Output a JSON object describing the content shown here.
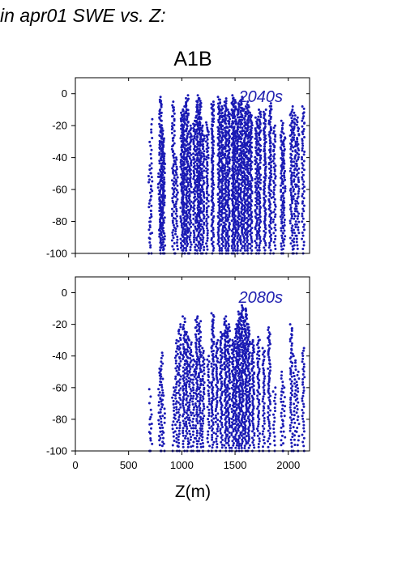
{
  "page": {
    "title": "in apr01 SWE vs. Z:"
  },
  "colors": {
    "points": "#1a1ab4",
    "label": "#2020b0",
    "axis": "#000000"
  },
  "chart_data": [
    {
      "type": "scatter",
      "title": "A1B",
      "annotation": "2040s",
      "xlabel": "",
      "ylabel": "",
      "xlim": [
        0,
        2200
      ],
      "ylim": [
        -100,
        10
      ],
      "x_ticks": [
        0,
        500,
        1000,
        1500,
        2000
      ],
      "y_ticks": [
        0,
        -20,
        -40,
        -60,
        -80,
        -100
      ],
      "x_tick_labels_shown": false,
      "grid": false,
      "elevation_columns": [
        {
          "x": 700,
          "ymax": -45,
          "density": 0.4
        },
        {
          "x": 710,
          "ymax": -16,
          "density": 0.3
        },
        {
          "x": 790,
          "ymax": -50,
          "density": 0.4
        },
        {
          "x": 800,
          "ymax": -2,
          "density": 0.9
        },
        {
          "x": 820,
          "ymax": -20,
          "density": 0.8
        },
        {
          "x": 830,
          "ymax": -28,
          "density": 0.6
        },
        {
          "x": 920,
          "ymax": -5,
          "density": 0.7
        },
        {
          "x": 950,
          "ymax": -40,
          "density": 0.6
        },
        {
          "x": 1000,
          "ymax": -12,
          "density": 0.9
        },
        {
          "x": 1020,
          "ymax": -8,
          "density": 1
        },
        {
          "x": 1050,
          "ymax": -1,
          "density": 1
        },
        {
          "x": 1080,
          "ymax": -20,
          "density": 0.8
        },
        {
          "x": 1120,
          "ymax": -15,
          "density": 0.8
        },
        {
          "x": 1150,
          "ymax": -1,
          "density": 1
        },
        {
          "x": 1170,
          "ymax": -3,
          "density": 1
        },
        {
          "x": 1200,
          "ymax": -20,
          "density": 0.8
        },
        {
          "x": 1240,
          "ymax": -18,
          "density": 0.7
        },
        {
          "x": 1290,
          "ymax": -5,
          "density": 1
        },
        {
          "x": 1350,
          "ymax": -2,
          "density": 1
        },
        {
          "x": 1380,
          "ymax": -8,
          "density": 1
        },
        {
          "x": 1410,
          "ymax": -3,
          "density": 1
        },
        {
          "x": 1440,
          "ymax": -10,
          "density": 1
        },
        {
          "x": 1480,
          "ymax": -1,
          "density": 1
        },
        {
          "x": 1500,
          "ymax": -4,
          "density": 1
        },
        {
          "x": 1530,
          "ymax": -6,
          "density": 1
        },
        {
          "x": 1560,
          "ymax": -2,
          "density": 1
        },
        {
          "x": 1590,
          "ymax": -8,
          "density": 1
        },
        {
          "x": 1620,
          "ymax": -5,
          "density": 1
        },
        {
          "x": 1650,
          "ymax": -12,
          "density": 1
        },
        {
          "x": 1700,
          "ymax": -15,
          "density": 0.9
        },
        {
          "x": 1730,
          "ymax": -10,
          "density": 0.9
        },
        {
          "x": 1780,
          "ymax": -10,
          "density": 0.9
        },
        {
          "x": 1830,
          "ymax": -6,
          "density": 0.9
        },
        {
          "x": 1870,
          "ymax": -20,
          "density": 0.6
        },
        {
          "x": 1940,
          "ymax": -17,
          "density": 0.7
        },
        {
          "x": 1960,
          "ymax": -25,
          "density": 0.6
        },
        {
          "x": 2030,
          "ymax": -8,
          "density": 0.7
        },
        {
          "x": 2060,
          "ymax": -12,
          "density": 0.6
        },
        {
          "x": 2090,
          "ymax": -15,
          "density": 0.6
        },
        {
          "x": 2140,
          "ymax": -8,
          "density": 0.6
        }
      ]
    },
    {
      "type": "scatter",
      "title": "",
      "annotation": "2080s",
      "xlabel": "Z(m)",
      "ylabel": "",
      "xlim": [
        0,
        2200
      ],
      "ylim": [
        -100,
        10
      ],
      "x_ticks": [
        0,
        500,
        1000,
        1500,
        2000
      ],
      "y_ticks": [
        0,
        -20,
        -40,
        -60,
        -80,
        -100
      ],
      "x_tick_labels_shown": true,
      "grid": false,
      "elevation_columns": [
        {
          "x": 700,
          "ymax": -61,
          "density": 0.2
        },
        {
          "x": 710,
          "ymax": -77,
          "density": 0.2
        },
        {
          "x": 790,
          "ymax": -48,
          "density": 0.4
        },
        {
          "x": 810,
          "ymax": -38,
          "density": 0.5
        },
        {
          "x": 830,
          "ymax": -65,
          "density": 0.3
        },
        {
          "x": 920,
          "ymax": -60,
          "density": 0.4
        },
        {
          "x": 950,
          "ymax": -30,
          "density": 0.5
        },
        {
          "x": 980,
          "ymax": -20,
          "density": 0.6
        },
        {
          "x": 1020,
          "ymax": -15,
          "density": 0.7
        },
        {
          "x": 1050,
          "ymax": -25,
          "density": 0.7
        },
        {
          "x": 1080,
          "ymax": -30,
          "density": 0.6
        },
        {
          "x": 1110,
          "ymax": -40,
          "density": 0.5
        },
        {
          "x": 1140,
          "ymax": -15,
          "density": 0.7
        },
        {
          "x": 1170,
          "ymax": -18,
          "density": 0.7
        },
        {
          "x": 1200,
          "ymax": -35,
          "density": 0.6
        },
        {
          "x": 1250,
          "ymax": -40,
          "density": 0.5
        },
        {
          "x": 1290,
          "ymax": -13,
          "density": 0.8
        },
        {
          "x": 1330,
          "ymax": -30,
          "density": 0.7
        },
        {
          "x": 1370,
          "ymax": -25,
          "density": 0.8
        },
        {
          "x": 1410,
          "ymax": -15,
          "density": 0.9
        },
        {
          "x": 1440,
          "ymax": -20,
          "density": 0.9
        },
        {
          "x": 1480,
          "ymax": -30,
          "density": 0.9
        },
        {
          "x": 1510,
          "ymax": -20,
          "density": 0.9
        },
        {
          "x": 1540,
          "ymax": -12,
          "density": 1
        },
        {
          "x": 1570,
          "ymax": -8,
          "density": 1
        },
        {
          "x": 1600,
          "ymax": -10,
          "density": 1
        },
        {
          "x": 1630,
          "ymax": -20,
          "density": 0.9
        },
        {
          "x": 1670,
          "ymax": -30,
          "density": 0.8
        },
        {
          "x": 1720,
          "ymax": -28,
          "density": 0.7
        },
        {
          "x": 1770,
          "ymax": -35,
          "density": 0.6
        },
        {
          "x": 1820,
          "ymax": -22,
          "density": 0.7
        },
        {
          "x": 1870,
          "ymax": -60,
          "density": 0.4
        },
        {
          "x": 1940,
          "ymax": -50,
          "density": 0.4
        },
        {
          "x": 1960,
          "ymax": -60,
          "density": 0.3
        },
        {
          "x": 2030,
          "ymax": -20,
          "density": 0.6
        },
        {
          "x": 2060,
          "ymax": -40,
          "density": 0.4
        },
        {
          "x": 2090,
          "ymax": -50,
          "density": 0.4
        },
        {
          "x": 2140,
          "ymax": -35,
          "density": 0.5
        }
      ]
    }
  ]
}
